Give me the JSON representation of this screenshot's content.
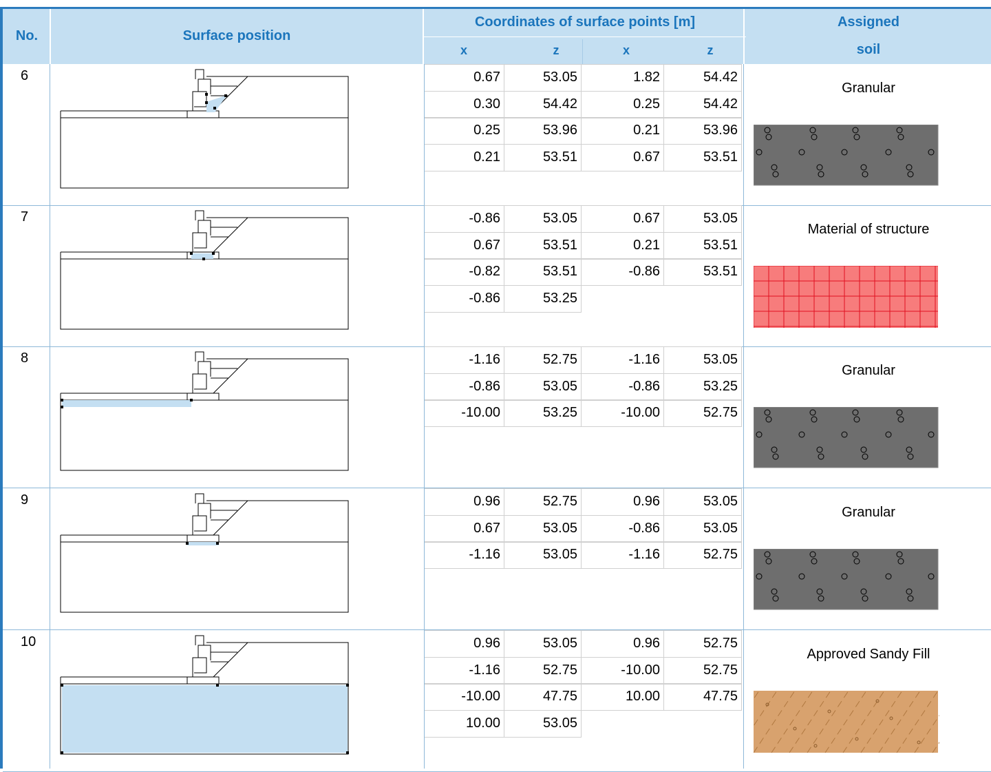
{
  "header": {
    "no": "No.",
    "surface_position": "Surface position",
    "coordinates": "Coordinates of surface points [m]",
    "x1": "x",
    "z1": "z",
    "x2": "x",
    "z2": "z",
    "assigned_line1": "Assigned",
    "assigned_line2": "soil"
  },
  "colors": {
    "accent": "#2b7bbd",
    "header_bg": "#c4dff2",
    "header_text": "#1b75bc",
    "highlight": "#c4dff2"
  },
  "rows": [
    {
      "no": "6",
      "soil": "Granular",
      "pattern": "granular",
      "coords": [
        [
          "0.67",
          "53.05",
          "1.82",
          "54.42"
        ],
        [
          "0.30",
          "54.42",
          "0.25",
          "54.42"
        ],
        [
          "0.25",
          "53.96",
          "0.21",
          "53.96"
        ],
        [
          "0.21",
          "53.51",
          "0.67",
          "53.51"
        ]
      ]
    },
    {
      "no": "7",
      "soil": "Material of structure",
      "pattern": "structure",
      "coords": [
        [
          "-0.86",
          "53.05",
          "0.67",
          "53.05"
        ],
        [
          "0.67",
          "53.51",
          "0.21",
          "53.51"
        ],
        [
          "-0.82",
          "53.51",
          "-0.86",
          "53.51"
        ],
        [
          "-0.86",
          "53.25",
          "",
          ""
        ]
      ]
    },
    {
      "no": "8",
      "soil": "Granular",
      "pattern": "granular",
      "coords": [
        [
          "-1.16",
          "52.75",
          "-1.16",
          "53.05"
        ],
        [
          "-0.86",
          "53.05",
          "-0.86",
          "53.25"
        ],
        [
          "-10.00",
          "53.25",
          "-10.00",
          "52.75"
        ]
      ]
    },
    {
      "no": "9",
      "soil": "Granular",
      "pattern": "granular",
      "coords": [
        [
          "0.96",
          "52.75",
          "0.96",
          "53.05"
        ],
        [
          "0.67",
          "53.05",
          "-0.86",
          "53.05"
        ],
        [
          "-1.16",
          "53.05",
          "-1.16",
          "52.75"
        ]
      ]
    },
    {
      "no": "10",
      "soil": "Approved Sandy Fill",
      "pattern": "sandy",
      "coords": [
        [
          "0.96",
          "53.05",
          "0.96",
          "52.75"
        ],
        [
          "-1.16",
          "52.75",
          "-10.00",
          "52.75"
        ],
        [
          "-10.00",
          "47.75",
          "10.00",
          "47.75"
        ],
        [
          "10.00",
          "53.05",
          "",
          ""
        ]
      ]
    }
  ]
}
